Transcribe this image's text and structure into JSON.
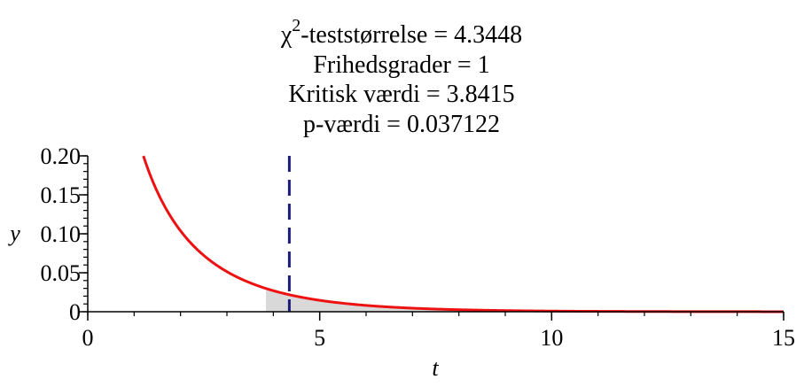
{
  "chart_data": {
    "type": "line",
    "title_lines": [
      {
        "prefix": "χ",
        "superscript": "2",
        "text": "-teststørrelse = 4.3448"
      },
      {
        "text": "Frihedsgrader = 1"
      },
      {
        "text": "Kritisk værdi  =  3.8415"
      },
      {
        "text": "p-værdi = 0.037122"
      }
    ],
    "xlabel": "t",
    "ylabel": "y",
    "xlim": [
      0,
      15
    ],
    "ylim": [
      0,
      0.2
    ],
    "x_ticks": [
      0,
      5,
      10,
      15
    ],
    "x_tick_labels": [
      "0",
      "5",
      "10",
      "15"
    ],
    "x_minor_step": 1,
    "y_ticks": [
      0,
      0.05,
      0.1,
      0.15,
      0.2
    ],
    "y_tick_labels": [
      "0",
      "0.05",
      "0.10",
      "0.15",
      "0.20"
    ],
    "y_minor_step": 0.01,
    "grid": false,
    "series": [
      {
        "distribution": "chi-square density",
        "degrees_of_freedom": 1,
        "x_range": [
          1.2,
          15
        ],
        "color": "#ee1111"
      }
    ],
    "shaded_region": {
      "from": 3.8415,
      "to": 15,
      "color": "#d9d9d9"
    },
    "critical_value": 3.8415,
    "test_statistic_line": {
      "x": 4.3448,
      "style": "dashed",
      "color": "#1a1a7a"
    },
    "axis_color": "#000000"
  }
}
